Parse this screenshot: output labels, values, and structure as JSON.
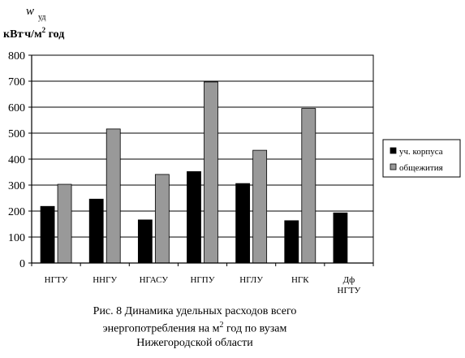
{
  "chart_data": {
    "type": "bar",
    "ylabel_symbol": "w",
    "ylabel_subscript": "уд",
    "ylabel_unit_part1": "кВт",
    "ylabel_unit_part2": "ч/м",
    "ylabel_unit_sup": "2",
    "ylabel_unit_part3": " год",
    "categories": [
      "НГТУ",
      "ННГУ",
      "НГАСУ",
      "НГПУ",
      "НГЛУ",
      "НГК",
      "Дф НГТУ"
    ],
    "series": [
      {
        "name": "уч. корпуса",
        "color": "#000000",
        "values": [
          218,
          246,
          166,
          352,
          306,
          163,
          193
        ]
      },
      {
        "name": "общежития",
        "color": "#999999",
        "values": [
          303,
          516,
          341,
          697,
          434,
          595,
          null
        ]
      }
    ],
    "ylim": [
      0,
      800
    ],
    "yticks": [
      0,
      100,
      200,
      300,
      400,
      500,
      600,
      700,
      800
    ],
    "grid": true,
    "legend_position": "right"
  },
  "caption": {
    "line1": "Рис. 8 Динамика удельных расходов всего",
    "line2a": "энергопотребления на м",
    "line2sup": "2",
    "line2b": " год по вузам",
    "line3": "Нижегородской области"
  }
}
